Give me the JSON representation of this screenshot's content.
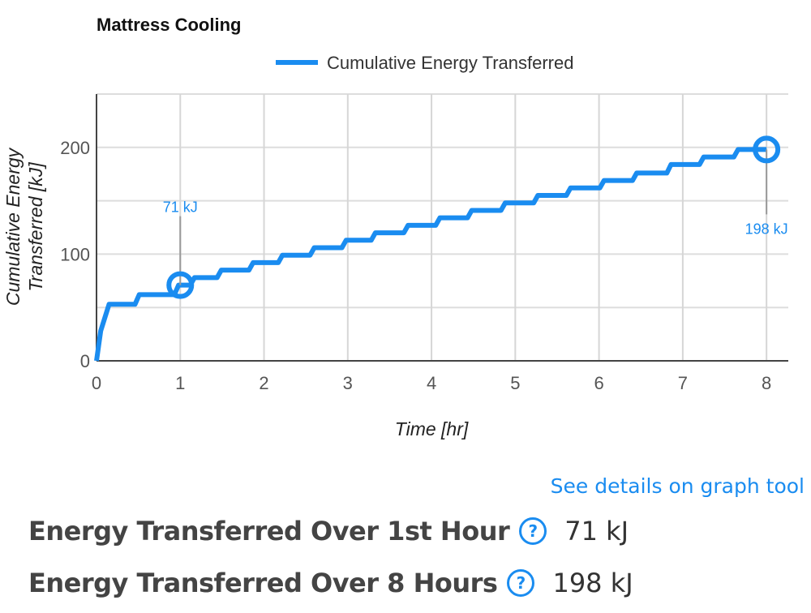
{
  "chart_data": {
    "type": "line",
    "title": "Mattress Cooling",
    "xlabel": "Time [hr]",
    "ylabel": "Cumulative Energy Transferred [kJ]",
    "xlim": [
      0,
      8.26
    ],
    "ylim": [
      0,
      250
    ],
    "xticks": [
      0,
      1,
      2,
      3,
      4,
      5,
      6,
      7,
      8
    ],
    "yticks": [
      0,
      100,
      200
    ],
    "grid": true,
    "legend": "top",
    "series": [
      {
        "name": "Cumulative Energy Transferred",
        "color": "#1a8cf0",
        "step": true,
        "x": [
          0,
          0.05,
          0.15,
          0.51,
          0.98,
          1.17,
          1.49,
          1.87,
          2.22,
          2.6,
          2.98,
          3.33,
          3.72,
          4.1,
          4.48,
          4.88,
          5.27,
          5.66,
          6.06,
          6.45,
          6.86,
          7.25,
          7.66,
          8
        ],
        "y": [
          0,
          28,
          53,
          62,
          71,
          78,
          85,
          92,
          99,
          106,
          113,
          120,
          127,
          134,
          141,
          148,
          155,
          162,
          169,
          176,
          184,
          191,
          198,
          198
        ]
      }
    ],
    "annotations": [
      {
        "x": 1,
        "y": 71,
        "text": "71 kJ",
        "position": "above"
      },
      {
        "x": 8,
        "y": 198,
        "text": "198 kJ",
        "position": "below"
      }
    ]
  },
  "link": "See details on graph tool",
  "stats": [
    {
      "label": "Energy Transferred Over 1st Hour",
      "value": "71 kJ"
    },
    {
      "label": "Energy Transferred Over 8 Hours",
      "value": "198 kJ"
    }
  ],
  "help_icon": "?"
}
